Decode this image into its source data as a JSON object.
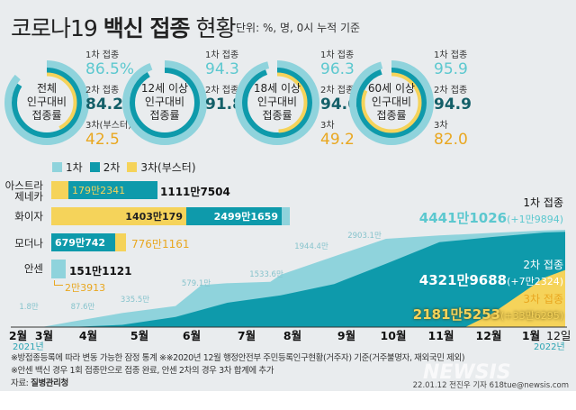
{
  "header": {
    "title_light": "코로나19",
    "title_bold": "백신 접종",
    "title_end": "현황",
    "unit": "단위: %, 명, 0시 누적 기준"
  },
  "colors": {
    "dose1": "#8fd3dc",
    "dose2": "#0e9aab",
    "dose3": "#f5d35a",
    "background": "#e9ecee"
  },
  "donuts": [
    {
      "label": [
        "전체",
        "인구대비",
        "접종률"
      ],
      "dose1_label": "1차 접종",
      "dose1": "86.5%",
      "dose2_label": "2차 접종",
      "dose2": "84.2",
      "dose3_label": "3차(부스터)",
      "dose3": "42.5",
      "p1": 86.5,
      "p2": 84.2,
      "p3": 42.5
    },
    {
      "label": [
        "12세 이상",
        "인구대비",
        "접종률"
      ],
      "dose1_label": "1차 접종",
      "dose1": "94.3",
      "dose2_label": "2차 접종",
      "dose2": "91.8",
      "p1": 94.3,
      "p2": 91.8,
      "p3": 0
    },
    {
      "label": [
        "18세 이상",
        "인구대비",
        "접종률"
      ],
      "dose1_label": "1차 접종",
      "dose1": "96.3",
      "dose2_label": "2차 접종",
      "dose2": "94.6",
      "dose3_label": "3차",
      "dose3": "49.2",
      "p1": 96.3,
      "p2": 94.6,
      "p3": 49.2
    },
    {
      "label": [
        "60세 이상",
        "인구대비",
        "접종률"
      ],
      "dose1_label": "1차 접종",
      "dose1": "95.9",
      "dose2_label": "2차 접종",
      "dose2": "94.9",
      "dose3_label": "3차",
      "dose3": "82.0",
      "p1": 95.9,
      "p2": 94.9,
      "p3": 82.0
    }
  ],
  "legend": [
    "1차",
    "2차",
    "3차(부스터)"
  ],
  "vaccines": [
    {
      "name": [
        "아스트라",
        "제네카"
      ],
      "inner": "179만2341",
      "total": "1111만7504"
    },
    {
      "name": [
        "화이자"
      ],
      "yellow": "1403만179",
      "teal": "2499만1659"
    },
    {
      "name": [
        "모더나"
      ],
      "teal": "679만742",
      "outer": "776만1161"
    },
    {
      "name": [
        "안센"
      ],
      "total": "151만1121",
      "extra": "2만3913"
    }
  ],
  "chart_data": {
    "type": "area",
    "xlabel": "",
    "ylabel": "",
    "x_ticks": [
      "2월",
      "3월",
      "4월",
      "5월",
      "6월",
      "7월",
      "8월",
      "9월",
      "10월",
      "11월",
      "12월",
      "1월",
      "12일"
    ],
    "year_start": "2021년",
    "year_end": "2022년",
    "series": [
      {
        "name": "1차 접종",
        "points": [
          [
            "2021-02-26",
            0
          ],
          [
            "2021-03-15",
            1.8
          ],
          [
            "2021-03-31",
            87.6
          ],
          [
            "2021-04-30",
            335.5
          ],
          [
            "2021-05-31",
            579.1
          ],
          [
            "2021-06-15",
            1450
          ],
          [
            "2021-06-30",
            1533.6
          ],
          [
            "2021-07-25",
            1600
          ],
          [
            "2021-07-31",
            1944.4
          ],
          [
            "2021-08-31",
            2903.1
          ],
          [
            "2021-09-30",
            3900
          ],
          [
            "2021-10-31",
            4100
          ],
          [
            "2021-11-30",
            4250
          ],
          [
            "2021-12-31",
            4400
          ],
          [
            "2022-01-12",
            4441.1026
          ]
        ]
      },
      {
        "name": "2차 접종",
        "points": [
          [
            "2021-02-26",
            0
          ],
          [
            "2021-03-31",
            0.5
          ],
          [
            "2021-04-30",
            30
          ],
          [
            "2021-05-31",
            220
          ],
          [
            "2021-06-30",
            700
          ],
          [
            "2021-07-31",
            1000
          ],
          [
            "2021-08-31",
            1500
          ],
          [
            "2021-09-30",
            2500
          ],
          [
            "2021-10-31",
            3700
          ],
          [
            "2021-11-30",
            4000
          ],
          [
            "2021-12-31",
            4280
          ],
          [
            "2022-01-12",
            4321.9688
          ]
        ]
      },
      {
        "name": "3차 접종",
        "points": [
          [
            "2021-11-15",
            0
          ],
          [
            "2021-11-30",
            300
          ],
          [
            "2021-12-31",
            1800
          ],
          [
            "2022-01-12",
            2181.5253
          ]
        ]
      }
    ],
    "point_labels": [
      "1.8만",
      "87.6만",
      "335.5만",
      "579.1만",
      "1533.6만",
      "1944.4만",
      "2903.1만"
    ],
    "totals": [
      {
        "label": "1차 접종",
        "value": "4441만1026",
        "delta": "(+1만9894)"
      },
      {
        "label": "2차 접종",
        "value": "4321만9688",
        "delta": "(+7만2324)"
      },
      {
        "label": "3차 접종",
        "value": "2181만5253",
        "delta": "(+33만6295)"
      }
    ]
  },
  "notes": [
    "※방접종등록에 따라 변동 가능한 잠정 통계 ※※2020년 12월 행정안전부 주민등록인구현황(거주자) 기준(거주불명자, 재외국민 제외)",
    "※안센 백신 경우 1회 접종만으로 접종 완료, 안센 2차의 경우 3차 합계에 추가"
  ],
  "source_label": "자료:",
  "source": "질병관리청",
  "credit": "22.01.12 전진우 기자 618tue@newsis.com",
  "watermark": "NEWSIS"
}
